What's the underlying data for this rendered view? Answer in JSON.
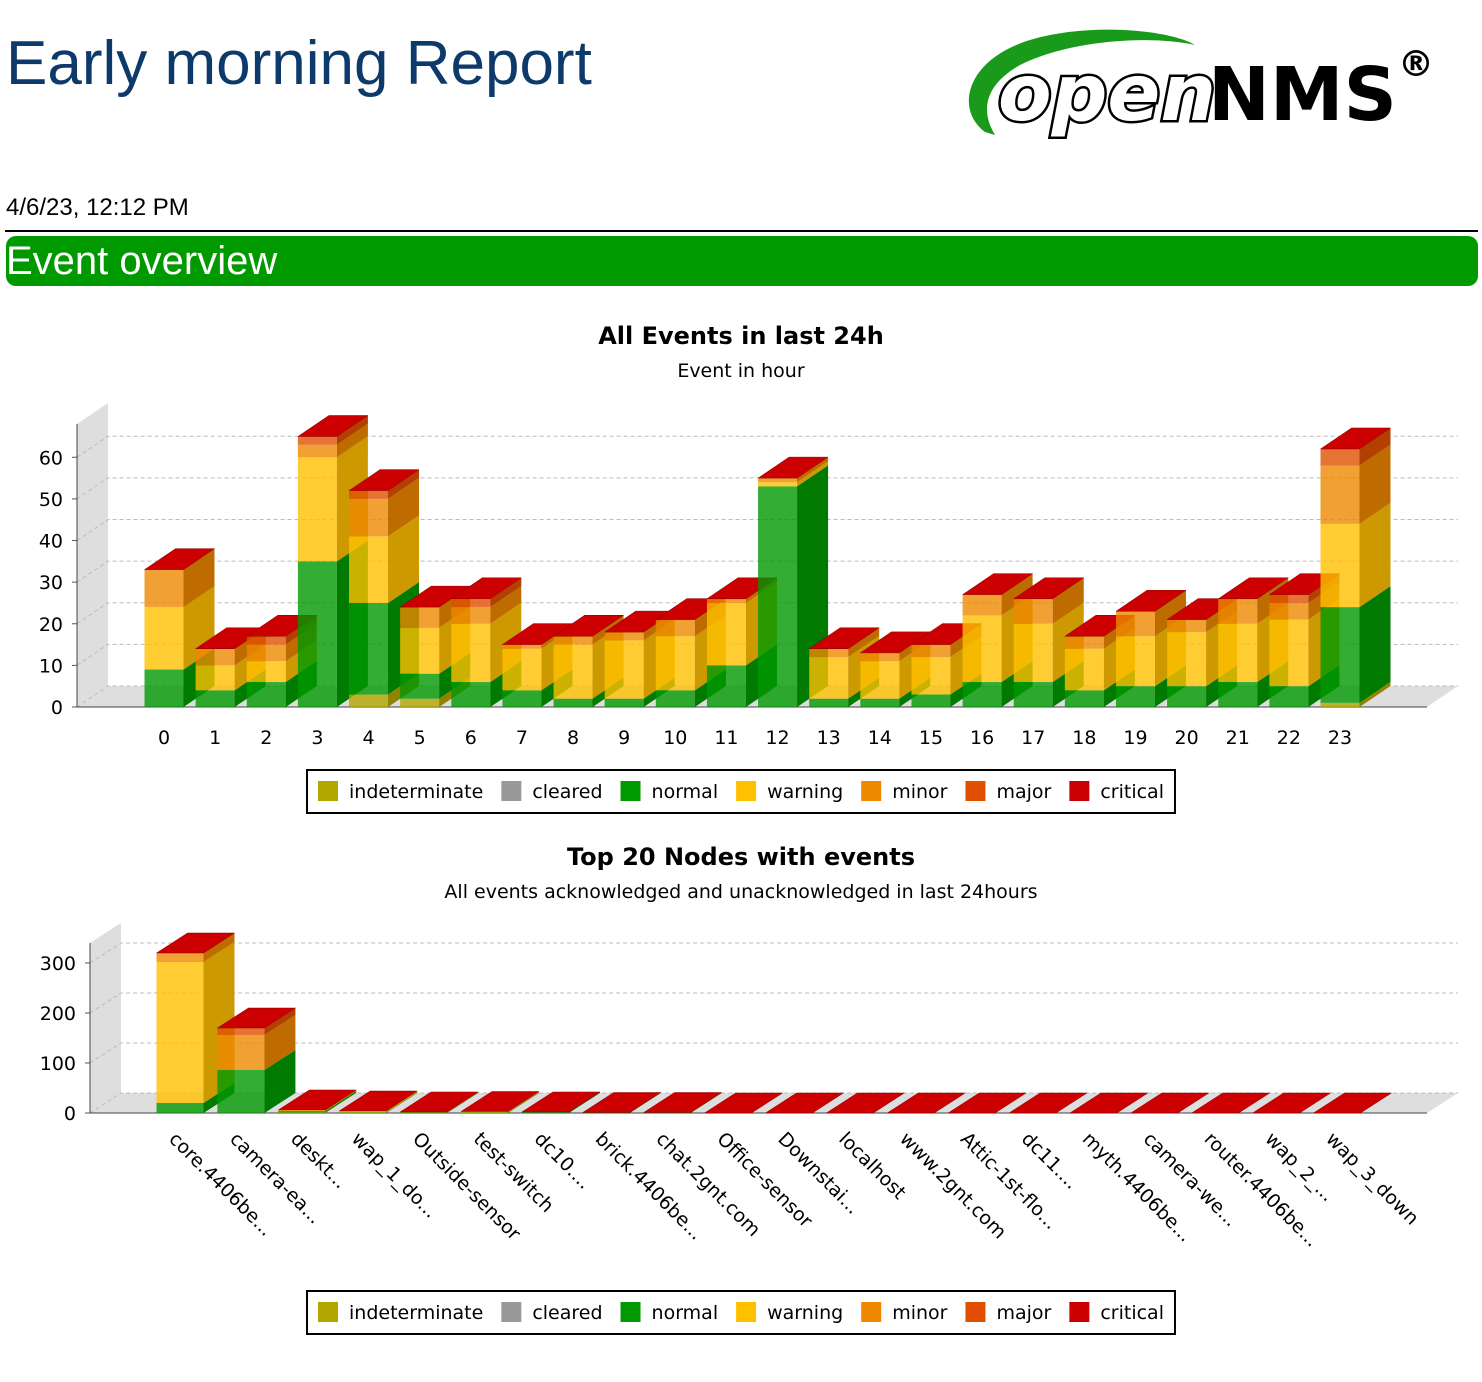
{
  "header": {
    "title": "Early morning Report",
    "logo": {
      "open": "open",
      "nms": "NMS",
      "mark": "®"
    },
    "date": "4/6/23, 12:12 PM",
    "section": "Event overview"
  },
  "chart_data": [
    {
      "type": "bar",
      "stacked": true,
      "title": "All Events in last 24h",
      "subtitle": "Event in hour",
      "categories": [
        "0",
        "1",
        "2",
        "3",
        "4",
        "5",
        "6",
        "7",
        "8",
        "9",
        "10",
        "11",
        "12",
        "13",
        "14",
        "15",
        "16",
        "17",
        "18",
        "19",
        "20",
        "21",
        "22",
        "23"
      ],
      "ylim": [
        0,
        68
      ],
      "yticks": [
        0,
        10,
        20,
        30,
        40,
        50,
        60
      ],
      "grid": true,
      "series": [
        {
          "name": "indeterminate",
          "color": "#b3a600",
          "values": [
            0,
            0,
            0,
            0,
            3,
            2,
            0,
            0,
            0,
            0,
            0,
            0,
            0,
            0,
            0,
            0,
            0,
            0,
            0,
            0,
            0,
            0,
            0,
            1
          ]
        },
        {
          "name": "cleared",
          "color": "#999999",
          "values": [
            0,
            0,
            0,
            0,
            0,
            0,
            0,
            0,
            0,
            0,
            0,
            0,
            0,
            0,
            0,
            0,
            0,
            0,
            0,
            0,
            0,
            0,
            0,
            0
          ]
        },
        {
          "name": "normal",
          "color": "#009900",
          "values": [
            9,
            4,
            6,
            35,
            22,
            6,
            6,
            4,
            2,
            2,
            4,
            10,
            53,
            2,
            2,
            3,
            6,
            6,
            4,
            5,
            5,
            6,
            5,
            23
          ]
        },
        {
          "name": "warning",
          "color": "#ffc000",
          "values": [
            15,
            6,
            5,
            25,
            16,
            11,
            14,
            10,
            13,
            14,
            13,
            15,
            1,
            10,
            9,
            9,
            16,
            14,
            10,
            12,
            13,
            14,
            16,
            20
          ]
        },
        {
          "name": "minor",
          "color": "#ee8800",
          "values": [
            9,
            4,
            4,
            3,
            9,
            5,
            4,
            1,
            2,
            2,
            4,
            1,
            1,
            2,
            2,
            3,
            5,
            6,
            3,
            6,
            3,
            6,
            4,
            14
          ]
        },
        {
          "name": "major",
          "color": "#e05000",
          "values": [
            0,
            0,
            2,
            2,
            2,
            0,
            2,
            0,
            0,
            0,
            0,
            0,
            0,
            0,
            0,
            0,
            0,
            0,
            0,
            0,
            0,
            0,
            2,
            4
          ]
        },
        {
          "name": "critical",
          "color": "#cc0000",
          "values": [
            0,
            0,
            0,
            0,
            0,
            0,
            0,
            0,
            0,
            0,
            0,
            0,
            0,
            0,
            0,
            0,
            0,
            0,
            0,
            0,
            0,
            0,
            0,
            0
          ]
        }
      ]
    },
    {
      "type": "bar",
      "stacked": true,
      "title": "Top 20 Nodes with events",
      "subtitle": "All events acknowledged and unacknowledged in last 24hours",
      "categories": [
        "core.4406be...",
        "camera-ea...",
        "deskt...",
        "wap_1_do...",
        "Outside-sensor",
        "test-switch",
        "dc10....",
        "brick.4406be...",
        "chat.2gnt.com",
        "Office-sensor",
        "Downstai...",
        "localhost",
        "www.2gnt.com",
        "Attic-1st-flo...",
        "dc11....",
        "myth.4406be...",
        "camera-we...",
        "router.4406be...",
        "wap_2_...",
        "wap_3_down"
      ],
      "ylim": [
        0,
        340
      ],
      "yticks": [
        0,
        100,
        200,
        300
      ],
      "grid": true,
      "series": [
        {
          "name": "indeterminate",
          "color": "#b3a600",
          "values": [
            0,
            0,
            1,
            0,
            0,
            0,
            0,
            0,
            0,
            0,
            0,
            0,
            0,
            0,
            0,
            0,
            0,
            0,
            0,
            0
          ]
        },
        {
          "name": "cleared",
          "color": "#999999",
          "values": [
            0,
            0,
            0,
            0,
            0,
            0,
            0,
            0,
            0,
            0,
            0,
            0,
            0,
            0,
            0,
            0,
            0,
            0,
            0,
            0
          ]
        },
        {
          "name": "normal",
          "color": "#009900",
          "values": [
            20,
            86,
            3,
            1,
            1,
            1,
            2,
            1,
            1,
            0,
            0,
            0,
            0,
            0,
            0,
            0,
            0,
            0,
            0,
            0
          ]
        },
        {
          "name": "warning",
          "color": "#ffc000",
          "values": [
            282,
            0,
            2,
            3,
            1,
            2,
            0,
            0,
            0,
            0,
            0,
            0,
            0,
            0,
            0,
            0,
            0,
            0,
            0,
            0
          ]
        },
        {
          "name": "minor",
          "color": "#ee8800",
          "values": [
            18,
            70,
            0,
            0,
            0,
            0,
            0,
            0,
            0,
            0,
            0,
            0,
            0,
            0,
            0,
            0,
            0,
            0,
            0,
            0
          ]
        },
        {
          "name": "major",
          "color": "#e05000",
          "values": [
            0,
            14,
            0,
            0,
            0,
            0,
            0,
            0,
            0,
            0,
            0,
            0,
            0,
            0,
            0,
            0,
            0,
            0,
            0,
            0
          ]
        },
        {
          "name": "critical",
          "color": "#cc0000",
          "values": [
            0,
            0,
            0,
            0,
            0,
            0,
            0,
            0,
            0,
            0,
            0,
            0,
            0,
            0,
            0,
            0,
            0,
            0,
            0,
            0
          ]
        }
      ]
    }
  ]
}
